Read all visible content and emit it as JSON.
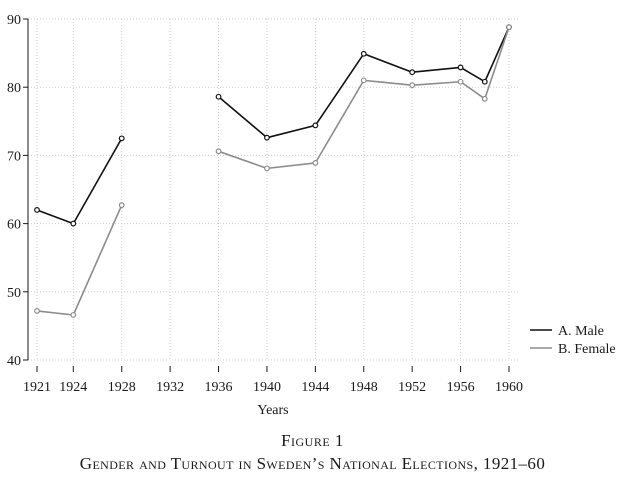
{
  "figure": {
    "number": "Figure 1",
    "caption": "Gender and Turnout in Sweden’s National Elections, 1921–60"
  },
  "chart_data": {
    "type": "line",
    "title": "",
    "xlabel": "Years",
    "ylabel": "",
    "xlim": [
      1920.5,
      1960.5
    ],
    "ylim": [
      40,
      90
    ],
    "xticks": [
      1921,
      1924,
      1928,
      1932,
      1936,
      1940,
      1944,
      1948,
      1952,
      1956,
      1960
    ],
    "yticks": [
      40,
      50,
      60,
      70,
      80,
      90
    ],
    "grid": "dotted",
    "legend_position": "bottom-right",
    "series": [
      {
        "name": "A. Male",
        "color": "#111111",
        "segments": [
          [
            [
              1921,
              62.0
            ],
            [
              1924,
              60.0
            ],
            [
              1928,
              72.5
            ]
          ],
          [
            [
              1936,
              78.6
            ],
            [
              1940,
              72.6
            ],
            [
              1944,
              74.4
            ],
            [
              1948,
              84.9
            ],
            [
              1952,
              82.2
            ],
            [
              1956,
              82.9
            ],
            [
              1958,
              80.8
            ],
            [
              1960,
              88.8
            ]
          ]
        ]
      },
      {
        "name": "B. Female",
        "color": "#8c8c8c",
        "segments": [
          [
            [
              1921,
              47.2
            ],
            [
              1924,
              46.6
            ],
            [
              1928,
              62.7
            ]
          ],
          [
            [
              1936,
              70.6
            ],
            [
              1940,
              68.1
            ],
            [
              1944,
              68.9
            ],
            [
              1948,
              81.0
            ],
            [
              1952,
              80.3
            ],
            [
              1956,
              80.8
            ],
            [
              1958,
              78.3
            ],
            [
              1960,
              88.8
            ]
          ]
        ]
      }
    ]
  }
}
